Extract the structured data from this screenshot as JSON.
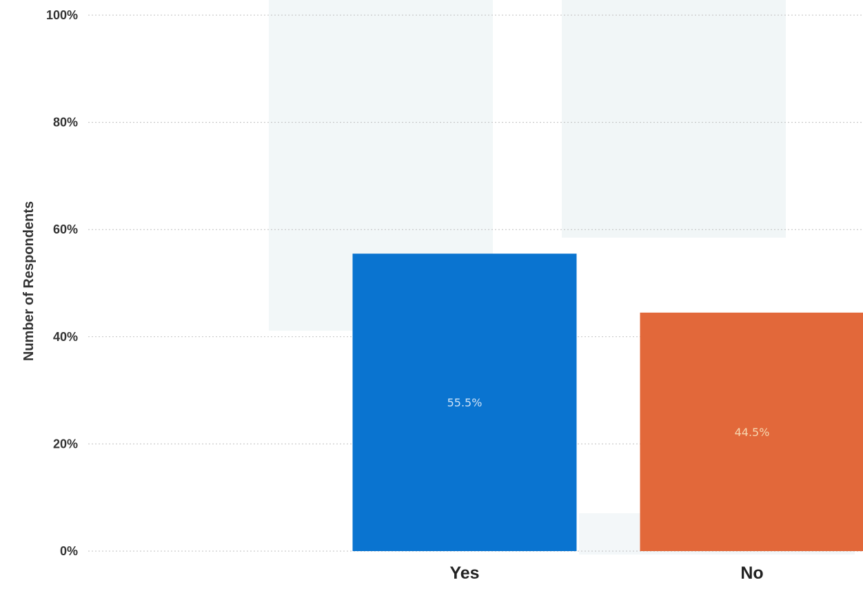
{
  "chart_data": {
    "type": "bar",
    "categories": [
      "Yes",
      "No"
    ],
    "values": [
      55.5,
      44.5
    ],
    "value_labels": [
      "55.5%",
      "44.5%"
    ],
    "ylabel": "Number of Respondents",
    "ylim": [
      0,
      100
    ],
    "yticks": [
      0,
      20,
      40,
      60,
      80,
      100
    ],
    "ytick_labels": [
      "0%",
      "20%",
      "40%",
      "60%",
      "80%",
      "100%"
    ],
    "grid": true,
    "legend": "none",
    "colors": [
      "#0a74d0",
      "#e2683a"
    ],
    "label_colors": [
      "#cfe3f7",
      "#f6d7b0"
    ]
  }
}
